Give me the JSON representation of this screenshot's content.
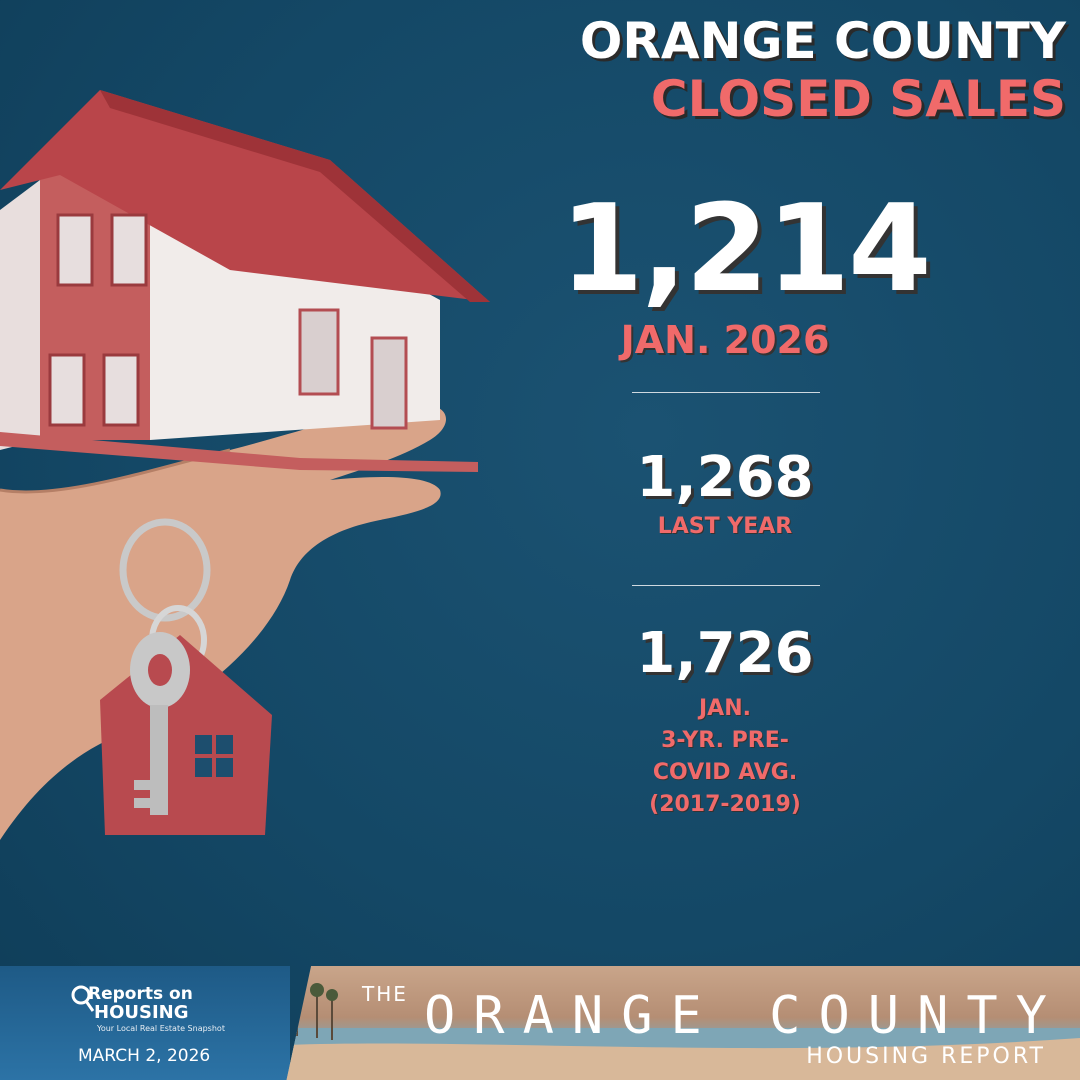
{
  "header": {
    "line1": "ORANGE COUNTY",
    "line2": "CLOSED SALES"
  },
  "main_stat": {
    "value": "1,214",
    "label": "JAN. 2026"
  },
  "last_year": {
    "value": "1,268",
    "label": "LAST YEAR"
  },
  "pre_covid": {
    "value": "1,726",
    "label_lines": [
      "JAN.",
      "3-YR. PRE-",
      "COVID AVG.",
      "(2017-2019)"
    ]
  },
  "footer": {
    "logo_reports": "Reports on",
    "logo_housing": "HOUSING",
    "logo_tagline": "Your Local Real Estate Snapshot",
    "date": "MARCH 2, 2026",
    "the": "THE",
    "title": "ORANGE COUNTY",
    "subtitle": "HOUSING REPORT"
  },
  "colors": {
    "background": "#144866",
    "accent": "#f06a6a",
    "text": "#ffffff"
  }
}
